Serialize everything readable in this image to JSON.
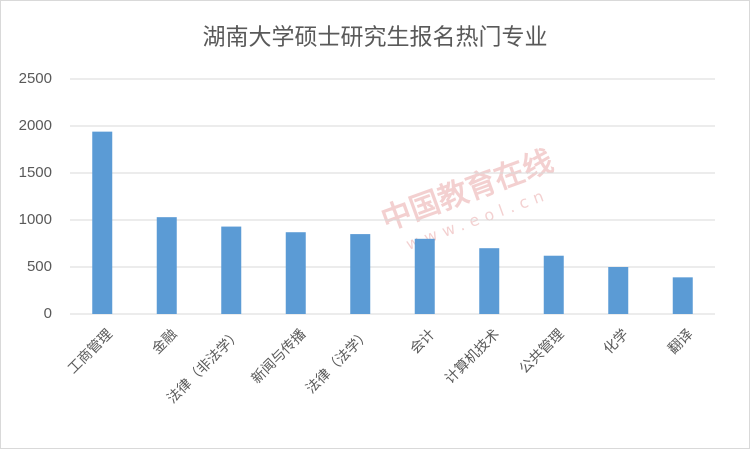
{
  "chart_data": {
    "type": "bar",
    "title": "湖南大学硕士研究生报名热门专业",
    "categories": [
      "工商管理",
      "金融",
      "法律（非法学）",
      "新闻与传播",
      "法律（法学）",
      "会计",
      "计算机技术",
      "公共管理",
      "化学",
      "翻译"
    ],
    "values": [
      1940,
      1030,
      930,
      870,
      850,
      800,
      700,
      620,
      500,
      390
    ],
    "color": "#5b9bd5",
    "ylim": [
      0,
      2500
    ],
    "yticks": [
      0,
      500,
      1000,
      1500,
      2000,
      2500
    ],
    "grid": true,
    "watermark": [
      "中国教育在线",
      "www.eol.cn"
    ]
  }
}
